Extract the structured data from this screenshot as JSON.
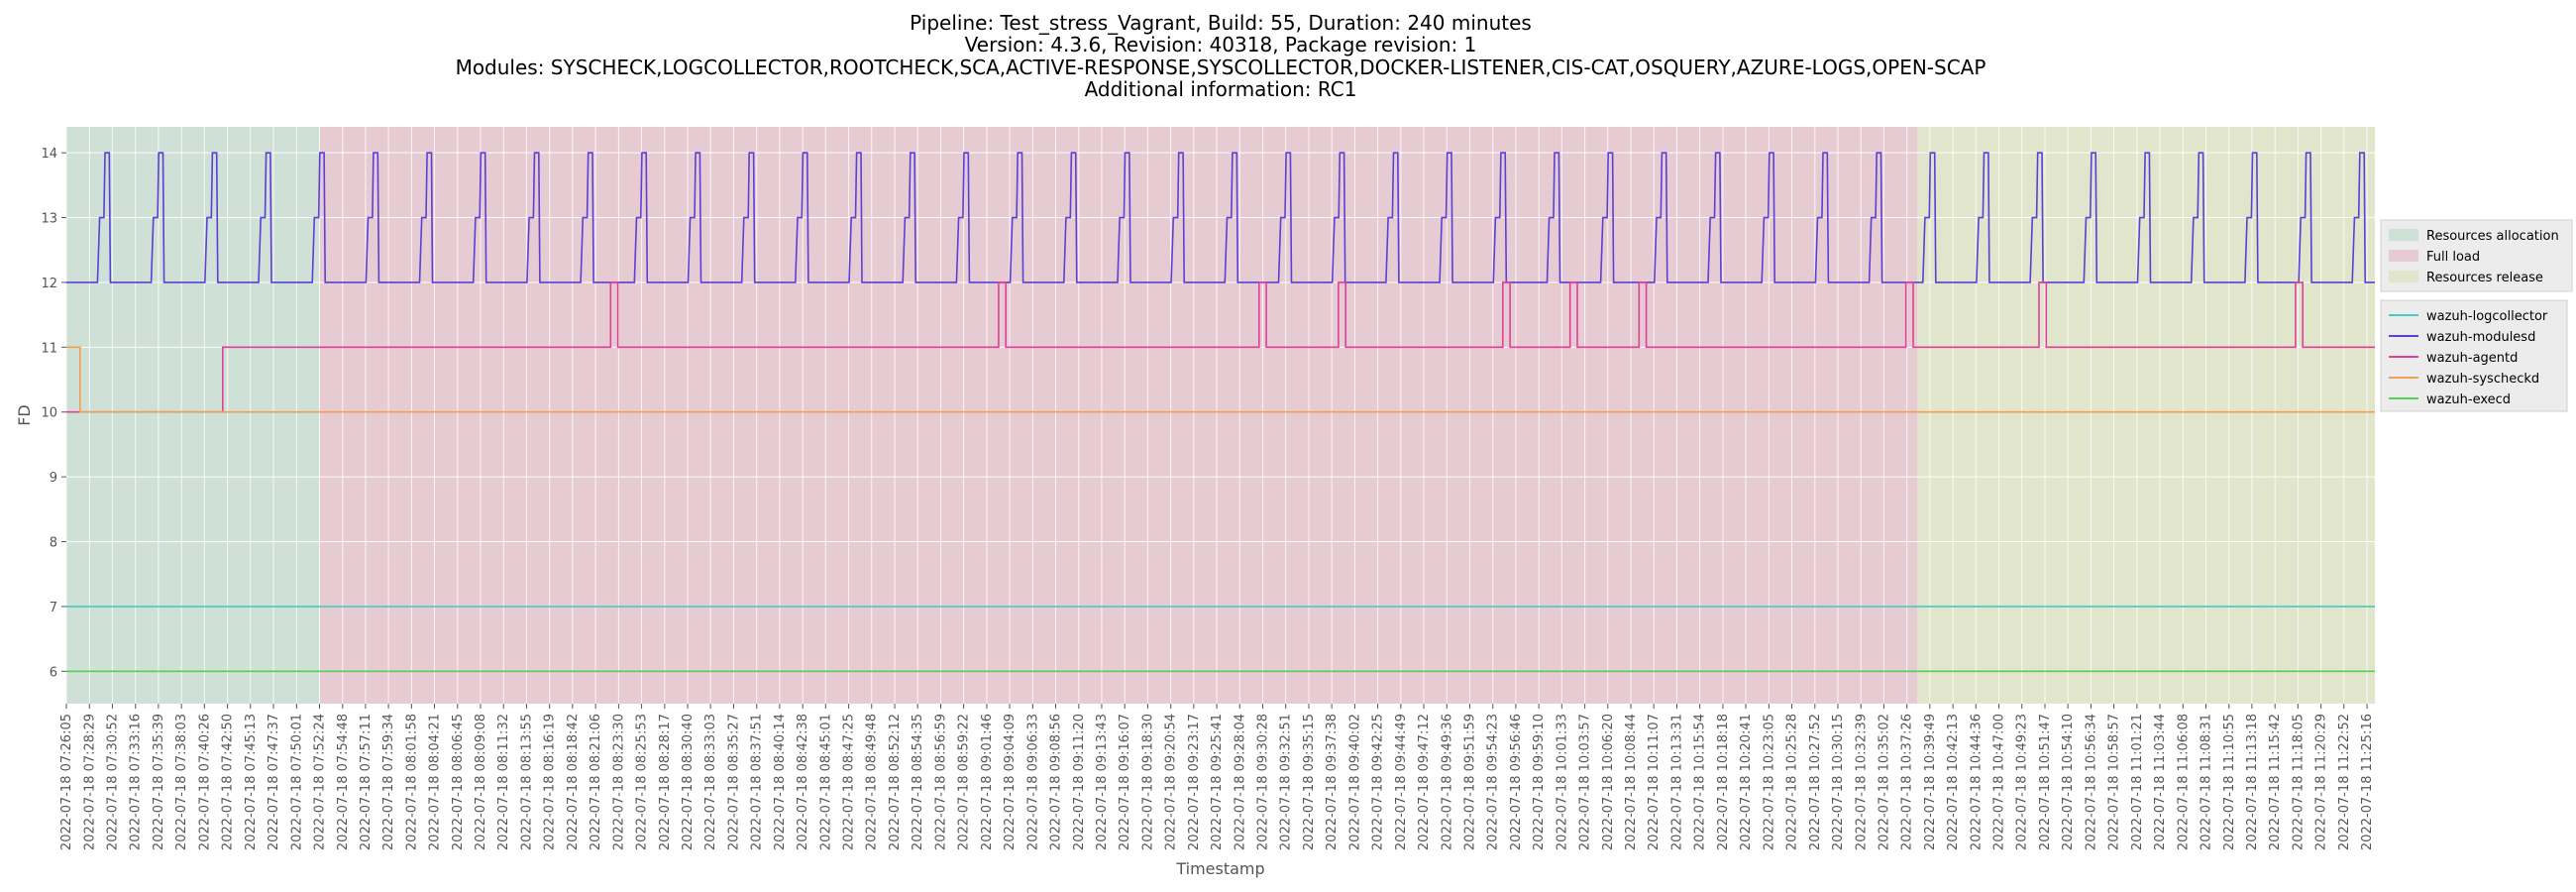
{
  "chart_data": {
    "type": "line",
    "title_lines": [
      "Pipeline: Test_stress_Vagrant, Build: 55, Duration: 240 minutes",
      "Version: 4.3.6, Revision: 40318, Package revision: 1",
      "Modules: SYSCHECK,LOGCOLLECTOR,ROOTCHECK,SCA,ACTIVE-RESPONSE,SYSCOLLECTOR,DOCKER-LISTENER,CIS-CAT,OSQUERY,AZURE-LOGS,OPEN-SCAP",
      "Additional information: RC1"
    ],
    "xlabel": "Timestamp",
    "ylabel": "FD",
    "ylim": [
      5.5,
      14.4
    ],
    "yticks": [
      6,
      7,
      8,
      9,
      10,
      11,
      12,
      13,
      14
    ],
    "grid": true,
    "x_start": "2022-07-18 07:26:05",
    "x_end": "2022-07-18 11:26:05",
    "xtick_labels": [
      "2022-07-18 07:26:05",
      "2022-07-18 07:28:29",
      "2022-07-18 07:30:52",
      "2022-07-18 07:33:16",
      "2022-07-18 07:35:39",
      "2022-07-18 07:38:03",
      "2022-07-18 07:40:26",
      "2022-07-18 07:42:50",
      "2022-07-18 07:45:13",
      "2022-07-18 07:47:37",
      "2022-07-18 07:50:01",
      "2022-07-18 07:52:24",
      "2022-07-18 07:54:48",
      "2022-07-18 07:57:11",
      "2022-07-18 07:59:34",
      "2022-07-18 08:01:58",
      "2022-07-18 08:04:21",
      "2022-07-18 08:06:45",
      "2022-07-18 08:09:08",
      "2022-07-18 08:11:32",
      "2022-07-18 08:13:55",
      "2022-07-18 08:16:19",
      "2022-07-18 08:18:42",
      "2022-07-18 08:21:06",
      "2022-07-18 08:23:30",
      "2022-07-18 08:25:53",
      "2022-07-18 08:28:17",
      "2022-07-18 08:30:40",
      "2022-07-18 08:33:03",
      "2022-07-18 08:35:27",
      "2022-07-18 08:37:51",
      "2022-07-18 08:40:14",
      "2022-07-18 08:42:38",
      "2022-07-18 08:45:01",
      "2022-07-18 08:47:25",
      "2022-07-18 08:49:48",
      "2022-07-18 08:52:12",
      "2022-07-18 08:54:35",
      "2022-07-18 08:56:59",
      "2022-07-18 08:59:22",
      "2022-07-18 09:01:46",
      "2022-07-18 09:04:09",
      "2022-07-18 09:06:33",
      "2022-07-18 09:08:56",
      "2022-07-18 09:11:20",
      "2022-07-18 09:13:43",
      "2022-07-18 09:16:07",
      "2022-07-18 09:18:30",
      "2022-07-18 09:20:54",
      "2022-07-18 09:23:17",
      "2022-07-18 09:25:41",
      "2022-07-18 09:28:04",
      "2022-07-18 09:30:28",
      "2022-07-18 09:32:51",
      "2022-07-18 09:35:15",
      "2022-07-18 09:37:38",
      "2022-07-18 09:40:02",
      "2022-07-18 09:42:25",
      "2022-07-18 09:44:49",
      "2022-07-18 09:47:12",
      "2022-07-18 09:49:36",
      "2022-07-18 09:51:59",
      "2022-07-18 09:54:23",
      "2022-07-18 09:56:46",
      "2022-07-18 09:59:10",
      "2022-07-18 10:01:33",
      "2022-07-18 10:03:57",
      "2022-07-18 10:06:20",
      "2022-07-18 10:08:44",
      "2022-07-18 10:11:07",
      "2022-07-18 10:13:31",
      "2022-07-18 10:15:54",
      "2022-07-18 10:18:18",
      "2022-07-18 10:20:41",
      "2022-07-18 10:23:05",
      "2022-07-18 10:25:28",
      "2022-07-18 10:27:52",
      "2022-07-18 10:30:15",
      "2022-07-18 10:32:39",
      "2022-07-18 10:35:02",
      "2022-07-18 10:37:26",
      "2022-07-18 10:39:49",
      "2022-07-18 10:42:13",
      "2022-07-18 10:44:36",
      "2022-07-18 10:47:00",
      "2022-07-18 10:49:23",
      "2022-07-18 10:51:47",
      "2022-07-18 10:54:10",
      "2022-07-18 10:56:34",
      "2022-07-18 10:58:57",
      "2022-07-18 11:01:21",
      "2022-07-18 11:03:44",
      "2022-07-18 11:06:08",
      "2022-07-18 11:08:31",
      "2022-07-18 11:10:55",
      "2022-07-18 11:13:18",
      "2022-07-18 11:15:42",
      "2022-07-18 11:18:05",
      "2022-07-18 11:20:29",
      "2022-07-18 11:22:52",
      "2022-07-18 11:25:16"
    ],
    "phases": [
      {
        "name": "Resources allocation",
        "start": "2022-07-18 07:26:05",
        "end": "2022-07-18 07:52:24",
        "color": "#cfe0d6"
      },
      {
        "name": "Full load",
        "start": "2022-07-18 07:52:24",
        "end": "2022-07-18 10:38:30",
        "color": "#e6ccd2"
      },
      {
        "name": "Resources release",
        "start": "2022-07-18 10:38:30",
        "end": "2022-07-18 11:26:05",
        "color": "#e0e5cc"
      }
    ],
    "series": [
      {
        "name": "wazuh-logcollector",
        "color": "#4cc9c0",
        "points": [
          [
            "2022-07-18 07:26:05",
            7
          ],
          [
            "2022-07-18 11:26:05",
            7
          ]
        ]
      },
      {
        "name": "wazuh-modulesd",
        "color": "#5b3fd6",
        "baseline": 12,
        "peak": 14,
        "pulse_start": "2022-07-18 07:26:05",
        "pulse_end": "2022-07-18 11:26:05",
        "pulse_count": 43,
        "pulse_shoulder": 13
      },
      {
        "name": "wazuh-agentd",
        "color": "#e0409a",
        "points": [
          [
            "2022-07-18 07:26:05",
            10
          ],
          [
            "2022-07-18 07:42:20",
            10
          ],
          [
            "2022-07-18 07:42:20",
            11
          ],
          [
            "2022-07-18 08:22:40",
            11
          ],
          [
            "2022-07-18 08:22:40",
            12
          ],
          [
            "2022-07-18 08:23:25",
            12
          ],
          [
            "2022-07-18 08:23:25",
            11
          ],
          [
            "2022-07-18 09:03:00",
            11
          ],
          [
            "2022-07-18 09:03:00",
            12
          ],
          [
            "2022-07-18 09:03:45",
            12
          ],
          [
            "2022-07-18 09:03:45",
            11
          ],
          [
            "2022-07-18 09:30:05",
            11
          ],
          [
            "2022-07-18 09:30:05",
            12
          ],
          [
            "2022-07-18 09:30:50",
            12
          ],
          [
            "2022-07-18 09:30:50",
            11
          ],
          [
            "2022-07-18 09:38:20",
            11
          ],
          [
            "2022-07-18 09:38:20",
            12
          ],
          [
            "2022-07-18 09:39:05",
            12
          ],
          [
            "2022-07-18 09:39:05",
            11
          ],
          [
            "2022-07-18 09:55:25",
            11
          ],
          [
            "2022-07-18 09:55:25",
            12
          ],
          [
            "2022-07-18 09:56:10",
            12
          ],
          [
            "2022-07-18 09:56:10",
            11
          ],
          [
            "2022-07-18 10:02:25",
            11
          ],
          [
            "2022-07-18 10:02:25",
            12
          ],
          [
            "2022-07-18 10:03:10",
            12
          ],
          [
            "2022-07-18 10:03:10",
            11
          ],
          [
            "2022-07-18 10:09:35",
            11
          ],
          [
            "2022-07-18 10:09:35",
            12
          ],
          [
            "2022-07-18 10:10:20",
            12
          ],
          [
            "2022-07-18 10:10:20",
            11
          ],
          [
            "2022-07-18 10:37:20",
            11
          ],
          [
            "2022-07-18 10:37:20",
            12
          ],
          [
            "2022-07-18 10:38:05",
            12
          ],
          [
            "2022-07-18 10:38:05",
            11
          ],
          [
            "2022-07-18 10:51:10",
            11
          ],
          [
            "2022-07-18 10:51:10",
            12
          ],
          [
            "2022-07-18 10:51:55",
            12
          ],
          [
            "2022-07-18 10:51:55",
            11
          ],
          [
            "2022-07-18 11:17:50",
            11
          ],
          [
            "2022-07-18 11:17:50",
            12
          ],
          [
            "2022-07-18 11:18:35",
            12
          ],
          [
            "2022-07-18 11:18:35",
            11
          ],
          [
            "2022-07-18 11:26:05",
            11
          ]
        ]
      },
      {
        "name": "wazuh-syscheckd",
        "color": "#f0a050",
        "points": [
          [
            "2022-07-18 07:26:05",
            11
          ],
          [
            "2022-07-18 07:27:30",
            11
          ],
          [
            "2022-07-18 07:27:30",
            10
          ],
          [
            "2022-07-18 11:26:05",
            10
          ]
        ]
      },
      {
        "name": "wazuh-execd",
        "color": "#55d055",
        "points": [
          [
            "2022-07-18 07:26:05",
            6
          ],
          [
            "2022-07-18 11:26:05",
            6
          ]
        ]
      }
    ]
  }
}
